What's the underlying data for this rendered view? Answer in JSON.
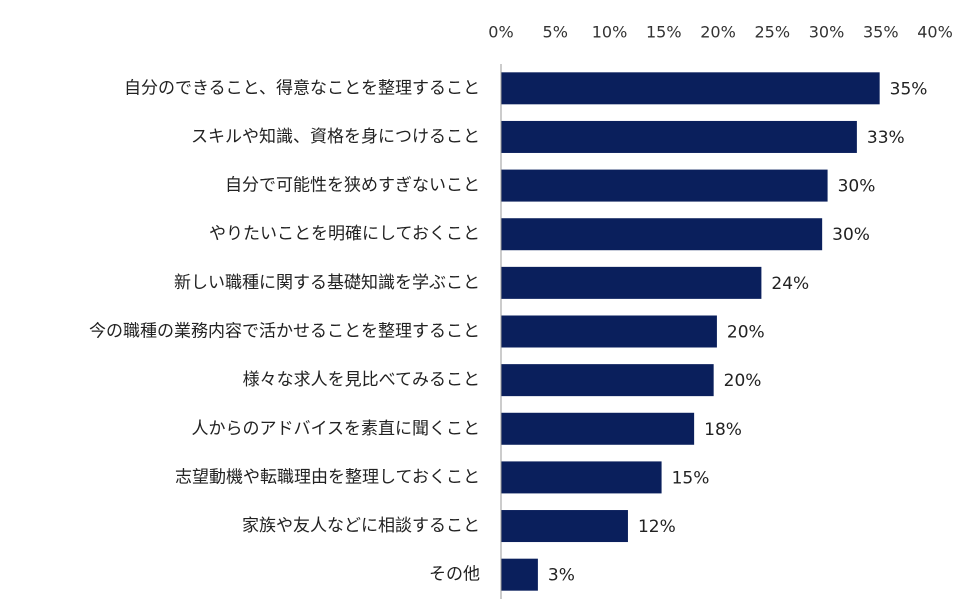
{
  "chart_data": {
    "type": "bar",
    "orientation": "horizontal",
    "categories": [
      "自分のできること、得意なことを整理すること",
      "スキルや知識、資格を身につけること",
      "自分で可能性を狭めすぎないこと",
      "やりたいことを明確にしておくこと",
      "新しい職種に関する基礎知識を学ぶこと",
      "今の職種の業務内容で活かせることを整理すること",
      "様々な求人を見比べてみること",
      "人からのアドバイスを素直に聞くこと",
      "志望動機や転職理由を整理しておくこと",
      "家族や友人などに相談すること",
      "その他"
    ],
    "values": [
      34.9,
      32.8,
      30.1,
      29.6,
      24.0,
      19.9,
      19.6,
      17.8,
      14.8,
      11.7,
      3.4
    ],
    "value_labels": [
      "35%",
      "33%",
      "30%",
      "30%",
      "24%",
      "20%",
      "20%",
      "18%",
      "15%",
      "12%",
      "3%"
    ],
    "color": "#0a1f5c",
    "xlim": [
      0,
      40
    ],
    "xticks": [
      {
        "value": 0,
        "label": "0%"
      },
      {
        "value": 5,
        "label": "5%"
      },
      {
        "value": 10,
        "label": "10%"
      },
      {
        "value": 15,
        "label": "15%"
      },
      {
        "value": 20,
        "label": "20%"
      },
      {
        "value": 25,
        "label": "25%"
      },
      {
        "value": 30,
        "label": "30%"
      },
      {
        "value": 35,
        "label": "35%"
      },
      {
        "value": 40,
        "label": "40%"
      }
    ],
    "grid": false
  }
}
